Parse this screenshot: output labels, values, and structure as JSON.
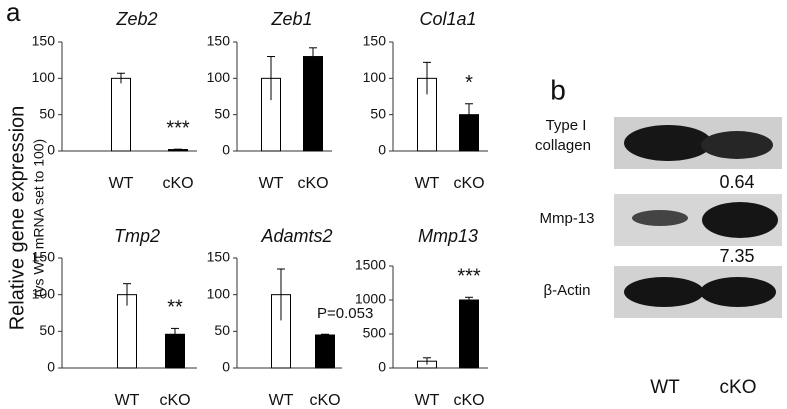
{
  "panel_a_label": "a",
  "y_label": "Relative gene expression",
  "y_sublabel": "(vs WT mRNA set to 100)",
  "chart_data": [
    {
      "type": "bar",
      "title": "Zeb2",
      "categories": [
        "WT",
        "cKO"
      ],
      "values": [
        100,
        2
      ],
      "errors": [
        7,
        0.5
      ],
      "colors": [
        "#ffffff",
        "#000000"
      ],
      "ylim": [
        0,
        150
      ],
      "yticks": [
        0,
        50,
        100,
        150
      ],
      "annotation": "***"
    },
    {
      "type": "bar",
      "title": "Zeb1",
      "categories": [
        "WT",
        "cKO"
      ],
      "values": [
        100,
        130
      ],
      "errors": [
        30,
        12
      ],
      "colors": [
        "#ffffff",
        "#000000"
      ],
      "ylim": [
        0,
        150
      ],
      "yticks": [
        0,
        50,
        100,
        150
      ]
    },
    {
      "type": "bar",
      "title": "Col1a1",
      "categories": [
        "WT",
        "cKO"
      ],
      "values": [
        100,
        50
      ],
      "errors": [
        22,
        15
      ],
      "colors": [
        "#ffffff",
        "#000000"
      ],
      "ylim": [
        0,
        150
      ],
      "yticks": [
        0,
        50,
        100,
        150
      ],
      "annotation": "*"
    },
    {
      "type": "bar",
      "title": "Tmp2",
      "categories": [
        "WT",
        "cKO"
      ],
      "values": [
        100,
        46
      ],
      "errors": [
        15,
        8
      ],
      "colors": [
        "#ffffff",
        "#000000"
      ],
      "ylim": [
        0,
        150
      ],
      "yticks": [
        0,
        50,
        100,
        150
      ],
      "annotation": "**"
    },
    {
      "type": "bar",
      "title": "Adamts2",
      "categories": [
        "WT",
        "cKO"
      ],
      "values": [
        100,
        45
      ],
      "errors": [
        35,
        1
      ],
      "colors": [
        "#ffffff",
        "#000000"
      ],
      "ylim": [
        0,
        150
      ],
      "yticks": [
        0,
        50,
        100,
        150
      ],
      "annotation": "P=0.053"
    },
    {
      "type": "bar",
      "title": "Mmp13",
      "categories": [
        "WT",
        "cKO"
      ],
      "values": [
        100,
        1000
      ],
      "errors": [
        50,
        40
      ],
      "colors": [
        "#ffffff",
        "#000000"
      ],
      "ylim": [
        0,
        1500
      ],
      "yticks": [
        0,
        500,
        1000,
        1500
      ],
      "annotation": "***"
    }
  ],
  "blot": {
    "panel_label": "b",
    "rows": [
      {
        "label": [
          "Type I",
          "collagen"
        ]
      },
      {
        "label": [
          "Mmp-13"
        ]
      },
      {
        "label": [
          "β-Actin"
        ]
      }
    ],
    "ratios": [
      0.64,
      7.35
    ],
    "lanes": [
      "WT",
      "cKO"
    ]
  }
}
